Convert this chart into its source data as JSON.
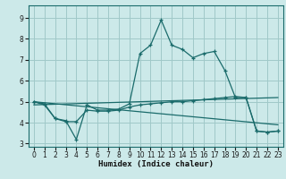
{
  "background_color": "#cce9e9",
  "grid_color": "#a0c8c8",
  "line_color": "#1a6b6b",
  "xlabel": "Humidex (Indice chaleur)",
  "xlim": [
    -0.5,
    23.5
  ],
  "ylim": [
    2.85,
    9.6
  ],
  "yticks": [
    3,
    4,
    5,
    6,
    7,
    8,
    9
  ],
  "xticks": [
    0,
    1,
    2,
    3,
    4,
    5,
    6,
    7,
    8,
    9,
    10,
    11,
    12,
    13,
    14,
    15,
    16,
    17,
    18,
    19,
    20,
    21,
    22,
    23
  ],
  "series1_x": [
    0,
    1,
    2,
    3,
    4,
    5,
    6,
    7,
    8,
    9,
    10,
    11,
    12,
    13,
    14,
    15,
    16,
    17,
    18,
    19,
    20,
    21,
    22,
    23
  ],
  "series1_y": [
    5.0,
    4.9,
    4.2,
    4.1,
    3.2,
    4.85,
    4.6,
    4.6,
    4.65,
    4.9,
    7.3,
    7.7,
    8.9,
    7.7,
    7.5,
    7.1,
    7.3,
    7.4,
    6.5,
    5.2,
    5.2,
    3.6,
    3.55,
    3.6
  ],
  "series2_x": [
    0,
    1,
    2,
    3,
    4,
    5,
    6,
    7,
    8,
    9,
    10,
    11,
    12,
    13,
    14,
    15,
    16,
    17,
    18,
    19,
    20,
    21,
    22,
    23
  ],
  "series2_y": [
    5.0,
    4.85,
    4.2,
    4.05,
    4.05,
    4.6,
    4.55,
    4.55,
    4.6,
    4.75,
    4.85,
    4.9,
    4.95,
    5.0,
    5.0,
    5.05,
    5.1,
    5.15,
    5.2,
    5.25,
    5.2,
    3.6,
    3.55,
    3.6
  ],
  "series3_x": [
    0,
    23
  ],
  "series3_y": [
    5.0,
    3.9
  ],
  "series4_x": [
    0,
    23
  ],
  "series4_y": [
    4.85,
    5.2
  ],
  "marker_size": 3.5,
  "tick_fontsize": 5.5,
  "xlabel_fontsize": 6.5
}
